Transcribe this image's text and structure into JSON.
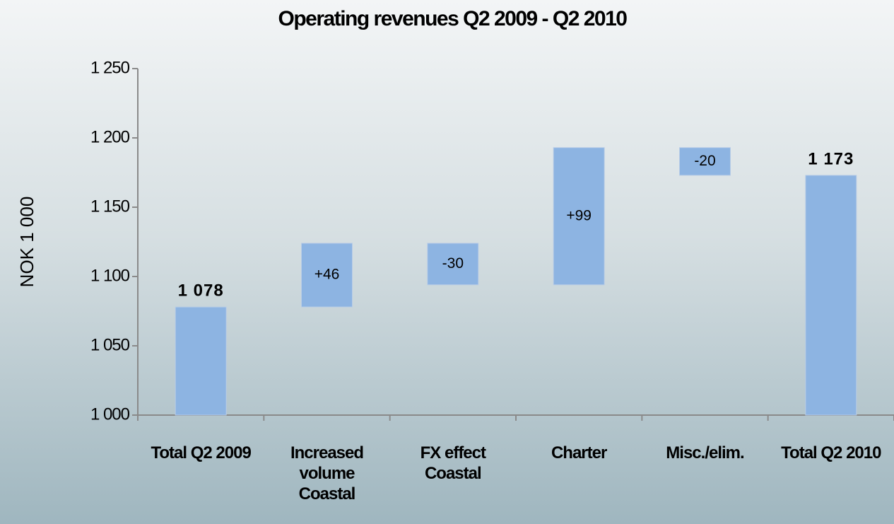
{
  "chart_data": {
    "type": "waterfall",
    "title": "Operating revenues Q2 2009  - Q2 2010",
    "y_label": "NOK 1 000",
    "categories": [
      "Total Q2 2009",
      "Increased volume Coastal",
      "FX effect Coastal",
      "Charter",
      "Misc./elim.",
      "Total Q2 2010"
    ],
    "values": [
      1078,
      46,
      -30,
      99,
      -20,
      1173
    ],
    "value_labels": [
      "1 078",
      "+46",
      "-30",
      "+99",
      "-20",
      "1 173"
    ],
    "color": "#8db4e2",
    "ylim": [
      1000,
      1250
    ],
    "yticks": [
      {
        "value": 1000,
        "label": "1 000"
      },
      {
        "value": 1050,
        "label": "1 050"
      },
      {
        "value": 1100,
        "label": "1 100"
      },
      {
        "value": 1150,
        "label": "1 150"
      },
      {
        "value": 1200,
        "label": "1 200"
      },
      {
        "value": 1250,
        "label": "1 250"
      }
    ]
  }
}
